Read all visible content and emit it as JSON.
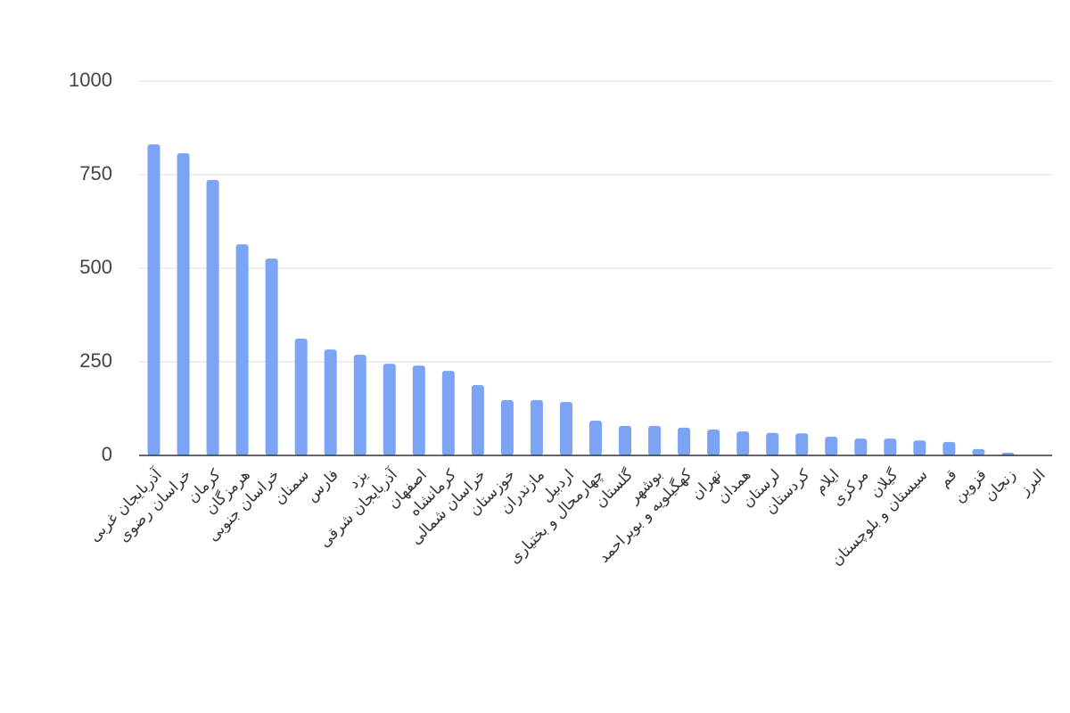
{
  "chart_data": {
    "type": "bar",
    "categories": [
      "آذربایجان غربی",
      "خراسان رضوی",
      "کرمان",
      "هرمزگان",
      "خراسان جنوبی",
      "سمنان",
      "فارس",
      "یزد",
      "آذربایجان شرقی",
      "اصفهان",
      "کرمانشاه",
      "خراسان شمالی",
      "خوزستان",
      "مازندران",
      "اردبیل",
      "چهارمحال و بختیاری",
      "گلستان",
      "بوشهر",
      "کهگیلویه و بویراحمد",
      "تهران",
      "همدان",
      "لرستان",
      "کردستان",
      "ایلام",
      "مرکزی",
      "گیلان",
      "سیستان و بلوچستان",
      "قم",
      "قزوین",
      "زنجان",
      "البرز"
    ],
    "values": [
      831,
      807,
      736,
      564,
      526,
      312,
      283,
      269,
      245,
      240,
      226,
      188,
      148,
      148,
      143,
      93,
      79,
      79,
      74,
      69,
      64,
      60,
      59,
      50,
      45,
      45,
      40,
      36,
      17,
      7,
      0
    ],
    "color": "#7ba4f5",
    "ylim": [
      0,
      1000
    ],
    "yticks": [
      0,
      250,
      500,
      750,
      1000
    ],
    "grid": true
  }
}
